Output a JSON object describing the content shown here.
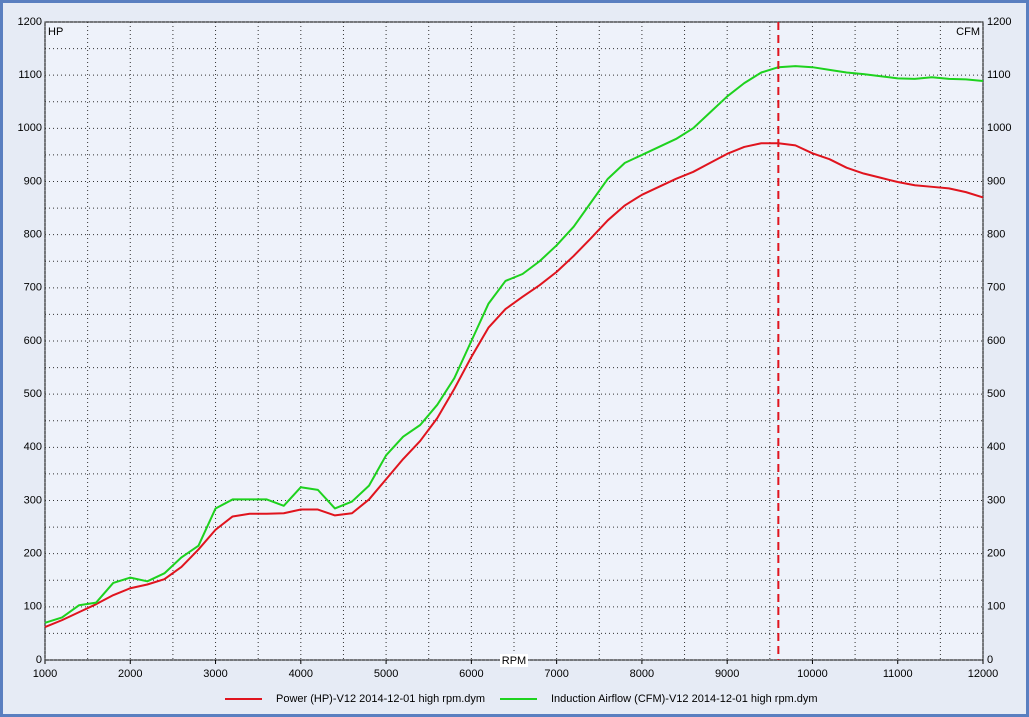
{
  "chart_data": {
    "type": "line",
    "x_label": "RPM",
    "y_label": "HP",
    "y2_label": "CFM",
    "x": [
      1000,
      1200,
      1400,
      1600,
      1800,
      2000,
      2200,
      2400,
      2600,
      2800,
      3000,
      3200,
      3400,
      3600,
      3800,
      4000,
      4200,
      4400,
      4600,
      4800,
      5000,
      5200,
      5400,
      5600,
      5800,
      6000,
      6200,
      6400,
      6600,
      6800,
      7000,
      7200,
      7400,
      7600,
      7800,
      8000,
      8200,
      8400,
      8600,
      8800,
      9000,
      9200,
      9400,
      9600,
      9800,
      10000,
      10200,
      10400,
      10600,
      10800,
      11000,
      11200,
      11400,
      11600,
      11800,
      12000
    ],
    "series": [
      {
        "name": "Power (HP)-V12 2014-12-01 high rpm.dym",
        "color": "#e0141e",
        "values": [
          62,
          75,
          90,
          105,
          122,
          135,
          142,
          152,
          175,
          208,
          245,
          270,
          275,
          275,
          276,
          283,
          283,
          272,
          276,
          302,
          340,
          378,
          412,
          455,
          510,
          570,
          625,
          660,
          683,
          705,
          730,
          760,
          793,
          827,
          855,
          875,
          890,
          905,
          918,
          935,
          952,
          965,
          972,
          972,
          968,
          953,
          942,
          926,
          915,
          907,
          899,
          893,
          890,
          887,
          880,
          870
        ]
      },
      {
        "name": "Induction Airflow (CFM)-V12 2014-12-01 high rpm.dym",
        "color": "#1ed21e",
        "axis": "y2",
        "values": [
          70,
          80,
          103,
          108,
          145,
          155,
          148,
          163,
          193,
          215,
          285,
          302,
          302,
          302,
          290,
          325,
          320,
          285,
          298,
          328,
          385,
          420,
          442,
          480,
          530,
          600,
          670,
          713,
          726,
          750,
          780,
          815,
          860,
          905,
          935,
          950,
          965,
          980,
          1000,
          1030,
          1060,
          1085,
          1105,
          1115,
          1117,
          1115,
          1110,
          1105,
          1102,
          1098,
          1094,
          1093,
          1096,
          1093,
          1092,
          1089
        ]
      }
    ],
    "xlim": [
      1000,
      12000
    ],
    "xticks": [
      1000,
      2000,
      3000,
      4000,
      5000,
      6000,
      7000,
      8000,
      9000,
      10000,
      11000,
      12000
    ],
    "ylim": [
      0,
      1200
    ],
    "yticks": [
      0,
      100,
      200,
      300,
      400,
      500,
      600,
      700,
      800,
      900,
      1000,
      1100,
      1200
    ],
    "y2lim": [
      0,
      1200
    ],
    "y2ticks": [
      0,
      100,
      200,
      300,
      400,
      500,
      600,
      700,
      800,
      900,
      1000,
      1100,
      1200
    ],
    "cursor_x": 9600,
    "cursor_color": "#e0141e",
    "grid": true
  }
}
